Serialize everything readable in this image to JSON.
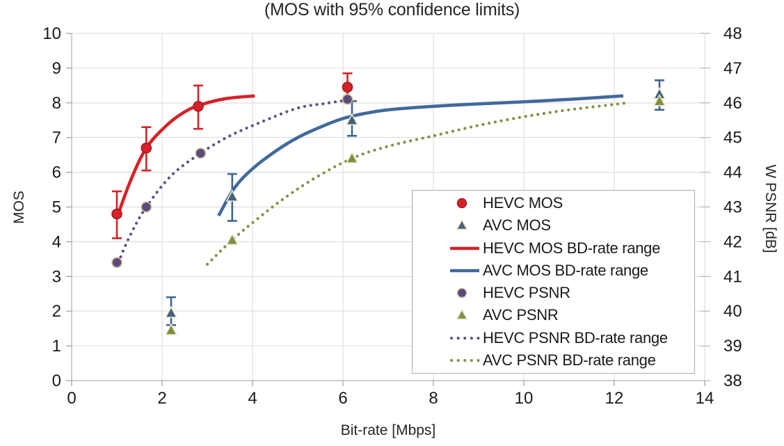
{
  "chart_data": {
    "type": "line",
    "title": "(MOS with 95% confidence limits)",
    "xlabel": "Bit-rate [Mbps]",
    "ylabel_left": "MOS",
    "ylabel_right": "W PSNR [dB]",
    "x_axis": {
      "min": 0,
      "max": 14,
      "ticks": [
        0,
        2,
        4,
        6,
        8,
        10,
        12,
        14
      ]
    },
    "y_left": {
      "min": 0,
      "max": 10,
      "ticks": [
        0,
        1,
        2,
        3,
        4,
        5,
        6,
        7,
        8,
        9,
        10
      ]
    },
    "y_right": {
      "min": 38,
      "max": 48,
      "ticks": [
        38,
        39,
        40,
        41,
        42,
        43,
        44,
        45,
        46,
        47,
        48
      ]
    },
    "grid": true,
    "legend_position": "inside-right",
    "series": [
      {
        "name": "HEVC PSNR BD-rate range",
        "type": "line",
        "style": "dotted",
        "axis": "right",
        "color": "#5d5185",
        "path": [
          [
            1.03,
            41.4
          ],
          [
            1.3,
            42.2
          ],
          [
            1.65,
            43.0
          ],
          [
            2.2,
            43.9
          ],
          [
            2.85,
            44.55
          ],
          [
            3.5,
            45.05
          ],
          [
            4.2,
            45.45
          ],
          [
            5.0,
            45.85
          ],
          [
            5.6,
            45.98
          ],
          [
            6.1,
            46.08
          ]
        ]
      },
      {
        "name": "AVC PSNR BD-rate range",
        "type": "line",
        "style": "dotted",
        "axis": "right",
        "color": "#7f9144",
        "path": [
          [
            3.0,
            41.35
          ],
          [
            3.55,
            42.05
          ],
          [
            4.1,
            42.65
          ],
          [
            4.7,
            43.25
          ],
          [
            5.4,
            43.85
          ],
          [
            6.2,
            44.4
          ],
          [
            7.0,
            44.75
          ],
          [
            8.0,
            45.05
          ],
          [
            9.0,
            45.35
          ],
          [
            10.0,
            45.6
          ],
          [
            11.0,
            45.8
          ],
          [
            12.3,
            46.0
          ]
        ]
      },
      {
        "name": "HEVC MOS BD-rate range",
        "type": "line",
        "style": "solid",
        "axis": "left",
        "color": "#d62128",
        "path": [
          [
            1.03,
            4.8
          ],
          [
            1.3,
            5.75
          ],
          [
            1.65,
            6.7
          ],
          [
            2.1,
            7.35
          ],
          [
            2.45,
            7.7
          ],
          [
            2.8,
            7.92
          ],
          [
            3.4,
            8.12
          ],
          [
            4.05,
            8.2
          ]
        ]
      },
      {
        "name": "AVC MOS BD-rate range",
        "type": "line",
        "style": "solid",
        "axis": "left",
        "color": "#41699c",
        "path": [
          [
            3.25,
            4.75
          ],
          [
            3.6,
            5.55
          ],
          [
            4.0,
            6.1
          ],
          [
            4.5,
            6.6
          ],
          [
            5.0,
            7.0
          ],
          [
            5.5,
            7.3
          ],
          [
            6.0,
            7.55
          ],
          [
            6.5,
            7.7
          ],
          [
            7.0,
            7.8
          ],
          [
            8.0,
            7.9
          ],
          [
            9.0,
            7.97
          ],
          [
            10.0,
            8.03
          ],
          [
            11.0,
            8.1
          ],
          [
            12.2,
            8.2
          ]
        ]
      },
      {
        "name": "HEVC MOS",
        "type": "scatter",
        "axis": "left",
        "marker": "circle",
        "color": "#d62128",
        "outline": "#a8161d",
        "error_color": "#d62128",
        "points": [
          {
            "x": 1.0,
            "y": 4.8,
            "lo": 4.1,
            "hi": 5.45
          },
          {
            "x": 1.65,
            "y": 6.7,
            "lo": 6.05,
            "hi": 7.3
          },
          {
            "x": 2.8,
            "y": 7.9,
            "lo": 7.25,
            "hi": 8.5
          },
          {
            "x": 6.1,
            "y": 8.45,
            "lo": 8.05,
            "hi": 8.85
          }
        ]
      },
      {
        "name": "AVC MOS",
        "type": "scatter",
        "axis": "left",
        "marker": "triangle",
        "color": "#44617e",
        "outline": "#f2edd0",
        "error_color": "#3f648b",
        "points": [
          {
            "x": 2.2,
            "y": 1.95,
            "lo": 1.6,
            "hi": 2.4
          },
          {
            "x": 3.55,
            "y": 5.3,
            "lo": 4.6,
            "hi": 5.95
          },
          {
            "x": 6.2,
            "y": 7.5,
            "lo": 7.05,
            "hi": 8.05
          },
          {
            "x": 13.0,
            "y": 8.25,
            "lo": 7.8,
            "hi": 8.65
          }
        ]
      },
      {
        "name": "HEVC PSNR",
        "type": "scatter",
        "axis": "right",
        "marker": "circle",
        "color": "#5a4a7b",
        "outline": "#cbbd96",
        "points": [
          {
            "x": 1.0,
            "y": 41.4
          },
          {
            "x": 1.65,
            "y": 43.0
          },
          {
            "x": 2.85,
            "y": 44.55
          },
          {
            "x": 6.1,
            "y": 46.1
          }
        ]
      },
      {
        "name": "AVC PSNR",
        "type": "scatter",
        "axis": "right",
        "marker": "triangle",
        "color": "#7d9044",
        "outline": "#f2edd0",
        "points": [
          {
            "x": 2.2,
            "y": 39.45
          },
          {
            "x": 3.55,
            "y": 42.05
          },
          {
            "x": 6.2,
            "y": 44.4
          },
          {
            "x": 13.0,
            "y": 46.05
          }
        ]
      }
    ]
  },
  "legend": {
    "items": [
      {
        "label": "HEVC MOS",
        "marker": {
          "shape": "circle",
          "fill": "#d62128",
          "stroke": "#a8161d"
        }
      },
      {
        "label": "AVC MOS",
        "marker": {
          "shape": "triangle",
          "fill": "#44617e",
          "stroke": "#e8e0b8"
        }
      },
      {
        "label": "HEVC MOS BD-rate range",
        "marker": {
          "shape": "line",
          "fill": "#d62128"
        }
      },
      {
        "label": "AVC MOS BD-rate range",
        "marker": {
          "shape": "line",
          "fill": "#41699c"
        }
      },
      {
        "label": "HEVC PSNR",
        "marker": {
          "shape": "circle",
          "fill": "#5a4a7b",
          "stroke": "#cbbd96"
        }
      },
      {
        "label": "AVC PSNR",
        "marker": {
          "shape": "triangle",
          "fill": "#7d9044",
          "stroke": "#e8e0b8"
        }
      },
      {
        "label": "HEVC PSNR BD-rate range",
        "marker": {
          "shape": "dotted",
          "fill": "#5d5185"
        }
      },
      {
        "label": "AVC PSNR BD-rate range",
        "marker": {
          "shape": "dotted",
          "fill": "#7f9144"
        }
      }
    ]
  },
  "colors": {
    "grid": "#d9d9d9",
    "axis": "#9e9e9e",
    "tick_text": "#1a1a1a",
    "hevc_red": "#d62128",
    "avc_blue": "#41699c",
    "hevc_purple": "#5a4a7b",
    "avc_olive": "#7d9044"
  }
}
